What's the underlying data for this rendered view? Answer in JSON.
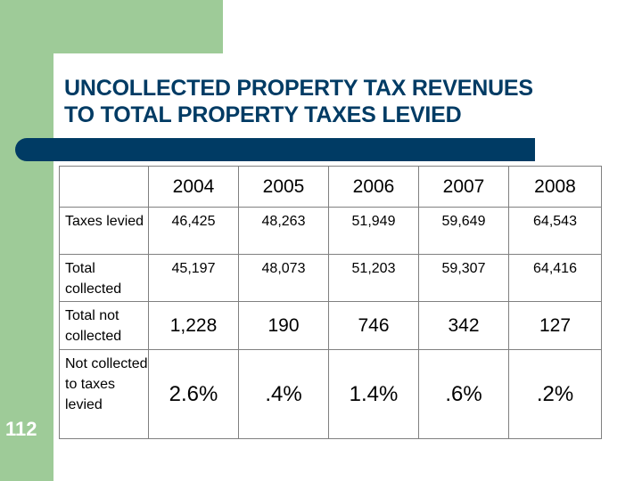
{
  "title": {
    "line1": "UNCOLLECTED PROPERTY TAX REVENUES",
    "line2": "TO TOTAL PROPERTY TAXES LEVIED"
  },
  "slide_number": "112",
  "table": {
    "corner": "",
    "years": [
      "2004",
      "2005",
      "2006",
      "2007",
      "2008"
    ],
    "rows": [
      {
        "label": "Taxes levied",
        "values": [
          "46,425",
          "48,263",
          "51,949",
          "59,649",
          "64,543"
        ]
      },
      {
        "label": "Total collected",
        "values": [
          "45,197",
          "48,073",
          "51,203",
          "59,307",
          "64,416"
        ]
      },
      {
        "label": "Total not collected",
        "values": [
          "1,228",
          "190",
          "746",
          "342",
          "127"
        ]
      },
      {
        "label": "Not collected to taxes levied",
        "values": [
          "2.6%",
          ".4%",
          "1.4%",
          ".6%",
          ".2%"
        ]
      }
    ]
  },
  "colors": {
    "accent_green": "#9ecb98",
    "title_navy": "#003b64"
  }
}
